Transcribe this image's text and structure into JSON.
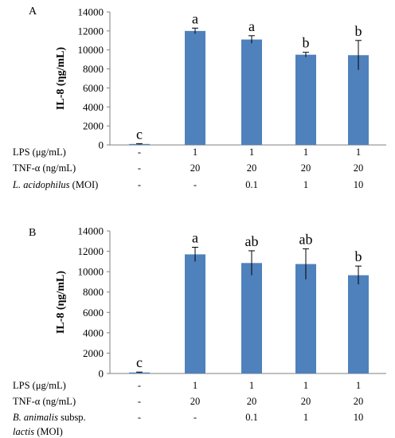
{
  "chart_data": [
    {
      "type": "bar",
      "panel_label": "A",
      "ylabel": "IL-8 (ηg/mL)",
      "ylim": [
        0,
        14000
      ],
      "yticks": [
        0,
        2000,
        4000,
        6000,
        8000,
        10000,
        12000,
        14000
      ],
      "values": [
        100,
        12000,
        11100,
        9500,
        9450
      ],
      "errors": [
        40,
        300,
        400,
        250,
        1550
      ],
      "significance": [
        "c",
        "a",
        "a",
        "b",
        "b"
      ],
      "bar_color": "#4f81bd",
      "conditions": [
        {
          "label_main": "LPS (μg/mL)",
          "label_italic": "",
          "label_suffix": "",
          "label_line2": "",
          "values": [
            "-",
            "1",
            "1",
            "1",
            "1"
          ]
        },
        {
          "label_main": "TNF-α (ng/mL)",
          "label_italic": "",
          "label_suffix": "",
          "label_line2": "",
          "values": [
            "-",
            "20",
            "20",
            "20",
            "20"
          ]
        },
        {
          "label_main": "",
          "label_italic": "L. acidophilus",
          "label_suffix": " (MOI)",
          "label_line2": "",
          "values": [
            "-",
            "-",
            "0.1",
            "1",
            "10"
          ]
        }
      ]
    },
    {
      "type": "bar",
      "panel_label": "B",
      "ylabel": "IL-8 (ηg/mL)",
      "ylim": [
        0,
        14000
      ],
      "yticks": [
        0,
        2000,
        4000,
        6000,
        8000,
        10000,
        12000,
        14000
      ],
      "values": [
        100,
        11700,
        10850,
        10750,
        9650
      ],
      "errors": [
        40,
        700,
        1200,
        1500,
        900
      ],
      "significance": [
        "c",
        "a",
        "ab",
        "ab",
        "b"
      ],
      "bar_color": "#4f81bd",
      "conditions": [
        {
          "label_main": "LPS (μg/mL)",
          "label_italic": "",
          "label_suffix": "",
          "label_line2": "",
          "values": [
            "-",
            "1",
            "1",
            "1",
            "1"
          ]
        },
        {
          "label_main": "TNF-α (ng/mL)",
          "label_italic": "",
          "label_suffix": "",
          "label_line2": "",
          "values": [
            "-",
            "20",
            "20",
            "20",
            "20"
          ]
        },
        {
          "label_main": "",
          "label_italic": "B. animalis",
          "label_suffix": " subsp.",
          "label_line2": "lactis (MOI)",
          "values": [
            "-",
            "-",
            "0.1",
            "1",
            "10"
          ]
        }
      ]
    }
  ]
}
